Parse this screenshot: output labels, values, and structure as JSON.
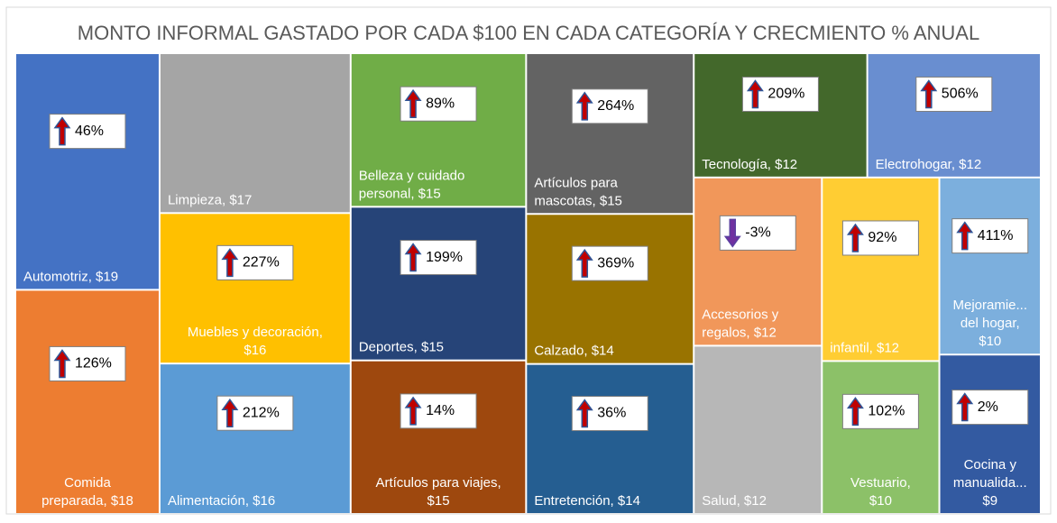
{
  "chart_data": {
    "type": "treemap",
    "title": "MONTO INFORMAL GASTADO POR CADA $100 EN CADA CATEGORÍA Y CRECMIENTO % ANUAL",
    "categories": [
      "Automotriz, $19",
      "Comida\npreparada, $18",
      "Limpieza, $17",
      "Muebles y decoración,\n$16",
      "Alimentación, $16",
      "Belleza y cuidado\npersonal, $15",
      "Deportes, $15",
      "Artículos para viajes,\n$15",
      "Artículos para\nmascotas, $15",
      "Calzado, $14",
      "Entretención, $14",
      "Tecnología, $12",
      "Electrohogar, $12",
      "Accesorios y\nregalos, $12",
      "Salud, $12",
      "infantil, $12",
      "Vestuario,\n$10",
      "Mejoramie...\ndel hogar,\n$10",
      "Cocina y\nmanualida...\n$9"
    ],
    "values": [
      19,
      18,
      17,
      16,
      16,
      15,
      15,
      15,
      15,
      14,
      14,
      12,
      12,
      12,
      12,
      12,
      10,
      10,
      9
    ],
    "colors": [
      "#4472c4",
      "#ed7d31",
      "#a5a5a5",
      "#ffc000",
      "#5b9bd5",
      "#70ad47",
      "#264478",
      "#9e480e",
      "#636363",
      "#997300",
      "#255e91",
      "#43682b",
      "#698ed0",
      "#f1975a",
      "#b7b7b7",
      "#ffcd33",
      "#8cc168",
      "#7cafdd",
      "#335aa1"
    ],
    "growth": [
      46,
      126,
      null,
      227,
      212,
      89,
      199,
      14,
      264,
      369,
      36,
      209,
      506,
      -3,
      null,
      92,
      102,
      411,
      2
    ],
    "growth_labels": [
      "46%",
      "126%",
      null,
      "227%",
      "212%",
      "89%",
      "199%",
      "14%",
      "264%",
      "369%",
      "36%",
      "209%",
      "506%",
      "-3%",
      null,
      "92%",
      "102%",
      "411%",
      "2%"
    ]
  }
}
